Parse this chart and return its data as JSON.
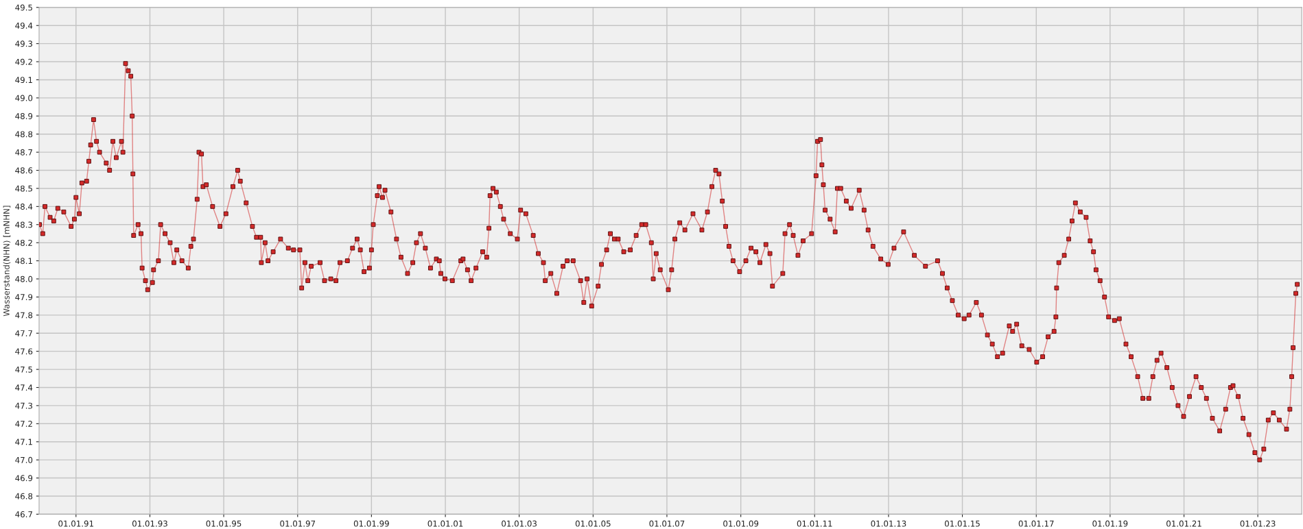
{
  "chart_data": {
    "type": "line",
    "ylabel": "Wasserstand(NHN) [mNHN]",
    "marker": "square",
    "line_style": "solid",
    "grid": true,
    "xlim": [
      "1990-01-01",
      "2024-03-10"
    ],
    "xticks": [
      {
        "value": "1991-01-01",
        "label": "01.01.91"
      },
      {
        "value": "1993-01-01",
        "label": "01.01.93"
      },
      {
        "value": "1995-01-01",
        "label": "01.01.95"
      },
      {
        "value": "1997-01-01",
        "label": "01.01.97"
      },
      {
        "value": "1999-01-01",
        "label": "01.01.99"
      },
      {
        "value": "2001-01-01",
        "label": "01.01.01"
      },
      {
        "value": "2003-01-01",
        "label": "01.01.03"
      },
      {
        "value": "2005-01-01",
        "label": "01.01.05"
      },
      {
        "value": "2007-01-01",
        "label": "01.01.07"
      },
      {
        "value": "2009-01-01",
        "label": "01.01.09"
      },
      {
        "value": "2011-01-01",
        "label": "01.01.11"
      },
      {
        "value": "2013-01-01",
        "label": "01.01.13"
      },
      {
        "value": "2015-01-01",
        "label": "01.01.15"
      },
      {
        "value": "2017-01-01",
        "label": "01.01.17"
      },
      {
        "value": "2019-01-01",
        "label": "01.01.19"
      },
      {
        "value": "2021-01-01",
        "label": "01.01.21"
      },
      {
        "value": "2023-01-01",
        "label": "01.01.23"
      }
    ],
    "ylim": [
      46.7,
      49.5
    ],
    "yticks": [
      46.7,
      46.8,
      46.9,
      {
        "value": 47,
        "label": "47.0"
      },
      47.1,
      47.2,
      47.3,
      47.4,
      47.5,
      47.6,
      47.7,
      47.8,
      47.9,
      {
        "value": 48,
        "label": "48.0"
      },
      48.1,
      48.2,
      48.3,
      48.4,
      48.5,
      48.6,
      48.7,
      48.8,
      48.9,
      {
        "value": 49,
        "label": "49.0"
      },
      49.1,
      49.2,
      49.3,
      49.4,
      49.5
    ],
    "series": [
      {
        "color": "#d42a2a",
        "x": [
          "1990-01-05",
          "1990-02-06",
          "1990-02-28",
          "1990-04-20",
          "1990-05-26",
          "1990-07-05",
          "1990-09-02",
          "1990-11-14",
          "1990-12-16",
          "1991-01-01",
          "1991-02-03",
          "1991-02-28",
          "1991-04-16",
          "1991-05-08",
          "1991-05-26",
          "1991-06-24",
          "1991-07-23",
          "1991-08-22",
          "1991-10-27",
          "1991-11-29",
          "1992-01-01",
          "1992-02-03",
          "1992-03-26",
          "1992-04-09",
          "1992-05-05",
          "1992-06-01",
          "1992-06-26",
          "1992-07-10",
          "1992-07-17",
          "1992-07-24",
          "1992-09-06",
          "1992-10-05",
          "1992-10-16",
          "1992-11-18",
          "1992-12-10",
          "1993-01-26",
          "1993-02-06",
          "1993-03-26",
          "1993-04-17",
          "1993-05-31",
          "1993-07-20",
          "1993-08-26",
          "1993-09-24",
          "1993-11-14",
          "1994-01-15",
          "1994-02-10",
          "1994-03-08",
          "1994-04-13",
          "1994-05-01",
          "1994-05-26",
          "1994-06-10",
          "1994-07-13",
          "1994-09-13",
          "1994-11-25",
          "1995-01-23",
          "1995-04-02",
          "1995-05-19",
          "1995-06-14",
          "1995-08-11",
          "1995-10-12",
          "1995-11-21",
          "1996-01-01",
          "1996-01-08",
          "1996-02-14",
          "1996-03-14",
          "1996-05-04",
          "1996-07-16",
          "1996-10-01",
          "1996-11-21",
          "1997-01-23",
          "1997-02-10",
          "1997-03-14",
          "1997-04-12",
          "1997-05-15",
          "1997-08-11",
          "1997-09-24",
          "1997-11-25",
          "1998-01-15",
          "1998-02-24",
          "1998-05-08",
          "1998-06-28",
          "1998-08-12",
          "1998-09-13",
          "1998-10-20",
          "1998-12-12",
          "1999-01-01",
          "1999-01-19",
          "1999-02-28",
          "1999-03-18",
          "1999-04-20",
          "1999-05-15",
          "1999-07-13",
          "1999-09-06",
          "1999-10-20",
          "1999-12-24",
          "2000-02-14",
          "2000-03-21",
          "2000-04-30",
          "2000-06-17",
          "2000-08-07",
          "2000-10-04",
          "2000-11-02",
          "2000-11-17",
          "2000-12-28",
          "2001-03-11",
          "2001-06-03",
          "2001-06-25",
          "2001-08-08",
          "2001-09-13",
          "2001-10-31",
          "2002-01-05",
          "2002-02-14",
          "2002-03-08",
          "2002-03-19",
          "2002-04-17",
          "2002-05-20",
          "2002-06-29",
          "2002-07-31",
          "2002-10-05",
          "2002-12-14",
          "2003-01-15",
          "2003-03-08",
          "2003-05-20",
          "2003-07-09",
          "2003-08-29",
          "2003-09-16",
          "2003-11-10",
          "2004-01-08",
          "2004-03-10",
          "2004-04-20",
          "2004-06-18",
          "2004-08-30",
          "2004-10-01",
          "2004-11-03",
          "2004-12-18",
          "2005-02-20",
          "2005-03-25",
          "2005-05-15",
          "2005-06-21",
          "2005-07-31",
          "2005-09-06",
          "2005-10-31",
          "2006-01-04",
          "2006-03-03",
          "2006-04-27",
          "2006-06-06",
          "2006-07-31",
          "2006-08-19",
          "2006-09-17",
          "2006-10-27",
          "2007-01-15",
          "2007-02-17",
          "2007-03-21",
          "2007-05-08",
          "2007-06-28",
          "2007-09-16",
          "2007-12-13",
          "2008-02-06",
          "2008-03-21",
          "2008-04-27",
          "2008-05-30",
          "2008-07-02",
          "2008-08-04",
          "2008-09-06",
          "2008-10-16",
          "2008-12-20",
          "2009-02-20",
          "2009-04-12",
          "2009-05-30",
          "2009-07-09",
          "2009-09-06",
          "2009-10-16",
          "2009-11-10",
          "2010-02-20",
          "2010-03-14",
          "2010-04-28",
          "2010-06-03",
          "2010-07-20",
          "2010-09-09",
          "2010-12-02",
          "2011-01-15",
          "2011-01-30",
          "2011-02-28",
          "2011-03-14",
          "2011-03-28",
          "2011-04-15",
          "2011-06-03",
          "2011-07-23",
          "2011-08-14",
          "2011-09-16",
          "2011-11-10",
          "2011-12-28",
          "2012-03-17",
          "2012-05-04",
          "2012-06-13",
          "2012-07-31",
          "2012-10-16",
          "2012-12-28",
          "2013-02-24",
          "2013-05-30",
          "2013-09-13",
          "2014-01-01",
          "2014-05-01",
          "2014-06-18",
          "2014-08-04",
          "2014-09-24",
          "2014-11-21",
          "2015-01-19",
          "2015-03-08",
          "2015-05-19",
          "2015-07-09",
          "2015-09-06",
          "2015-10-24",
          "2015-12-14",
          "2016-02-03",
          "2016-04-09",
          "2016-05-12",
          "2016-06-21",
          "2016-08-11",
          "2016-10-23",
          "2017-01-05",
          "2017-03-05",
          "2017-04-28",
          "2017-06-26",
          "2017-07-14",
          "2017-07-21",
          "2017-08-12",
          "2017-10-05",
          "2017-11-18",
          "2017-12-21",
          "2018-01-23",
          "2018-03-12",
          "2018-05-09",
          "2018-06-18",
          "2018-07-21",
          "2018-08-15",
          "2018-09-24",
          "2018-11-07",
          "2018-12-17",
          "2019-02-14",
          "2019-04-02",
          "2019-06-07",
          "2019-07-28",
          "2019-10-01",
          "2019-11-21",
          "2020-01-19",
          "2020-02-28",
          "2020-04-09",
          "2020-05-19",
          "2020-07-16",
          "2020-09-06",
          "2020-11-03",
          "2020-12-28",
          "2021-02-24",
          "2021-04-30",
          "2021-06-21",
          "2021-08-11",
          "2021-10-09",
          "2021-12-20",
          "2022-02-17",
          "2022-04-06",
          "2022-05-01",
          "2022-06-21",
          "2022-08-08",
          "2022-10-05",
          "2022-12-03",
          "2023-01-19",
          "2023-03-01",
          "2023-04-14",
          "2023-06-04",
          "2023-08-01",
          "2023-10-12",
          "2023-11-14",
          "2023-12-02",
          "2023-12-16",
          "2024-01-12",
          "2024-01-26"
        ],
        "values": [
          48.3,
          48.25,
          48.4,
          48.34,
          48.32,
          48.39,
          48.37,
          48.29,
          48.33,
          48.45,
          48.36,
          48.53,
          48.54,
          48.65,
          48.74,
          48.88,
          48.76,
          48.7,
          48.64,
          48.6,
          48.76,
          48.67,
          48.76,
          48.7,
          49.19,
          49.15,
          49.12,
          48.9,
          48.58,
          48.24,
          48.3,
          48.25,
          48.06,
          47.99,
          47.94,
          47.98,
          48.05,
          48.1,
          48.3,
          48.25,
          48.2,
          48.09,
          48.16,
          48.1,
          48.06,
          48.18,
          48.22,
          48.44,
          48.7,
          48.69,
          48.51,
          48.52,
          48.4,
          48.29,
          48.36,
          48.51,
          48.6,
          48.54,
          48.42,
          48.29,
          48.23,
          48.23,
          48.09,
          48.2,
          48.1,
          48.15,
          48.22,
          48.17,
          48.16,
          48.16,
          47.95,
          48.09,
          47.99,
          48.07,
          48.09,
          47.99,
          48.0,
          47.99,
          48.09,
          48.1,
          48.17,
          48.22,
          48.16,
          48.04,
          48.06,
          48.16,
          48.3,
          48.46,
          48.51,
          48.45,
          48.49,
          48.37,
          48.22,
          48.12,
          48.03,
          48.09,
          48.2,
          48.25,
          48.17,
          48.06,
          48.11,
          48.1,
          48.03,
          48.0,
          47.99,
          48.1,
          48.11,
          48.05,
          47.99,
          48.06,
          48.15,
          48.12,
          48.28,
          48.46,
          48.5,
          48.48,
          48.4,
          48.33,
          48.25,
          48.22,
          48.38,
          48.36,
          48.24,
          48.14,
          48.09,
          47.99,
          48.03,
          47.92,
          48.07,
          48.1,
          48.1,
          47.99,
          47.87,
          48.0,
          47.85,
          47.96,
          48.08,
          48.16,
          48.25,
          48.22,
          48.22,
          48.15,
          48.16,
          48.24,
          48.3,
          48.3,
          48.2,
          48.0,
          48.14,
          48.05,
          47.94,
          48.05,
          48.22,
          48.31,
          48.27,
          48.36,
          48.27,
          48.37,
          48.51,
          48.6,
          48.58,
          48.43,
          48.29,
          48.18,
          48.1,
          48.04,
          48.1,
          48.17,
          48.15,
          48.09,
          48.19,
          48.14,
          47.96,
          48.03,
          48.25,
          48.3,
          48.24,
          48.13,
          48.21,
          48.25,
          48.57,
          48.76,
          48.77,
          48.63,
          48.52,
          48.38,
          48.33,
          48.26,
          48.5,
          48.5,
          48.43,
          48.39,
          48.49,
          48.38,
          48.27,
          48.18,
          48.11,
          48.08,
          48.17,
          48.26,
          48.13,
          48.07,
          48.1,
          48.03,
          47.95,
          47.88,
          47.8,
          47.78,
          47.8,
          47.87,
          47.8,
          47.69,
          47.64,
          47.57,
          47.59,
          47.74,
          47.71,
          47.75,
          47.63,
          47.61,
          47.54,
          47.57,
          47.68,
          47.71,
          47.79,
          47.95,
          48.09,
          48.13,
          48.22,
          48.32,
          48.42,
          48.37,
          48.34,
          48.21,
          48.15,
          48.05,
          47.99,
          47.9,
          47.79,
          47.77,
          47.78,
          47.64,
          47.57,
          47.46,
          47.34,
          47.34,
          47.46,
          47.55,
          47.59,
          47.51,
          47.4,
          47.3,
          47.24,
          47.35,
          47.46,
          47.4,
          47.34,
          47.23,
          47.16,
          47.28,
          47.4,
          47.41,
          47.35,
          47.23,
          47.14,
          47.04,
          47.0,
          47.06,
          47.22,
          47.26,
          47.22,
          47.17,
          47.28,
          47.46,
          47.62,
          47.92,
          47.97
        ]
      }
    ]
  }
}
